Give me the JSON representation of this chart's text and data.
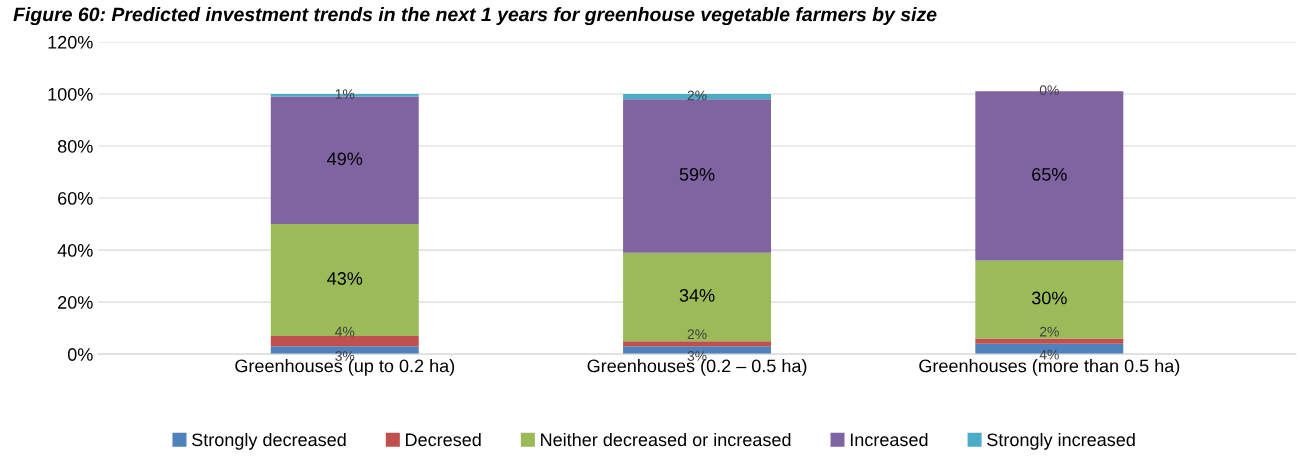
{
  "chart_data": {
    "type": "bar",
    "stacked": true,
    "title": "Figure 60: Predicted investment trends in the next 1 years for greenhouse vegetable farmers by size",
    "categories": [
      "Greenhouses (up to 0.2 ha)",
      "Greenhouses (0.2 – 0.5 ha)",
      "Greenhouses (more than 0.5 ha)"
    ],
    "series": [
      {
        "name": "Strongly decreased",
        "color": "#4f81bd",
        "values": [
          3,
          3,
          4
        ],
        "value_labels": [
          "3%",
          "3%",
          "4%"
        ]
      },
      {
        "name": "Decresed",
        "color": "#c0504d",
        "values": [
          4,
          2,
          2
        ],
        "value_labels": [
          "4%",
          "2%",
          "2%"
        ]
      },
      {
        "name": "Neither decreased or increased",
        "color": "#9bbb59",
        "values": [
          43,
          34,
          30
        ],
        "value_labels": [
          "43%",
          "34%",
          "30%"
        ]
      },
      {
        "name": "Increased",
        "color": "#8064a2",
        "values": [
          49,
          59,
          65
        ],
        "value_labels": [
          "49%",
          "59%",
          "65%"
        ]
      },
      {
        "name": "Strongly increased",
        "color": "#4bacc6",
        "values": [
          1,
          2,
          0
        ],
        "value_labels": [
          "1%",
          "2%",
          "0%"
        ]
      }
    ],
    "ylim": [
      0,
      120
    ],
    "yticks": [
      {
        "value": 0,
        "label": "0%"
      },
      {
        "value": 20,
        "label": "20%"
      },
      {
        "value": 40,
        "label": "40%"
      },
      {
        "value": 60,
        "label": "60%"
      },
      {
        "value": 80,
        "label": "80%"
      },
      {
        "value": 100,
        "label": "100%"
      },
      {
        "value": 120,
        "label": "120%"
      }
    ],
    "grid": "y",
    "legend": "bottom"
  }
}
